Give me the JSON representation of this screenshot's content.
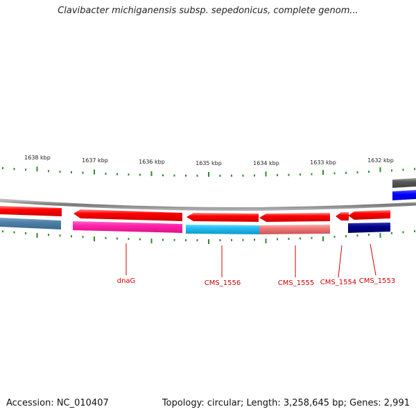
{
  "title": "Clavibacter michiganensis subsp. sepedonicus, complete genom...",
  "footer": {
    "accession": "Accession: NC_010407",
    "summary": "Topology: circular; Length: 3,258,645 bp; Genes: 2,991"
  },
  "ruler": {
    "labels": [
      "1638 kbp",
      "1637 kbp",
      "1636 kbp",
      "1635 kbp",
      "1634 kbp",
      "1633 kbp",
      "1632 kbp"
    ]
  },
  "genes": [
    {
      "label": "dnaG",
      "color": "#cc0000"
    },
    {
      "label": "CMS_1556",
      "color": "#cc0000"
    },
    {
      "label": "CMS_1555",
      "color": "#cc0000"
    },
    {
      "label": "CMS_1554",
      "color": "#cc0000"
    },
    {
      "label": "CMS_1553",
      "color": "#cc0000"
    }
  ],
  "colors": {
    "cds": "#ff0000",
    "backbone": "#888888",
    "tick": "#2e8b2e",
    "pink": "#ff33aa",
    "cyan": "#22bbee",
    "salmon": "#ee7777",
    "navy": "#000088",
    "steel": "#4d7fa8",
    "blue": "#0000ff",
    "gray": "#555555"
  }
}
